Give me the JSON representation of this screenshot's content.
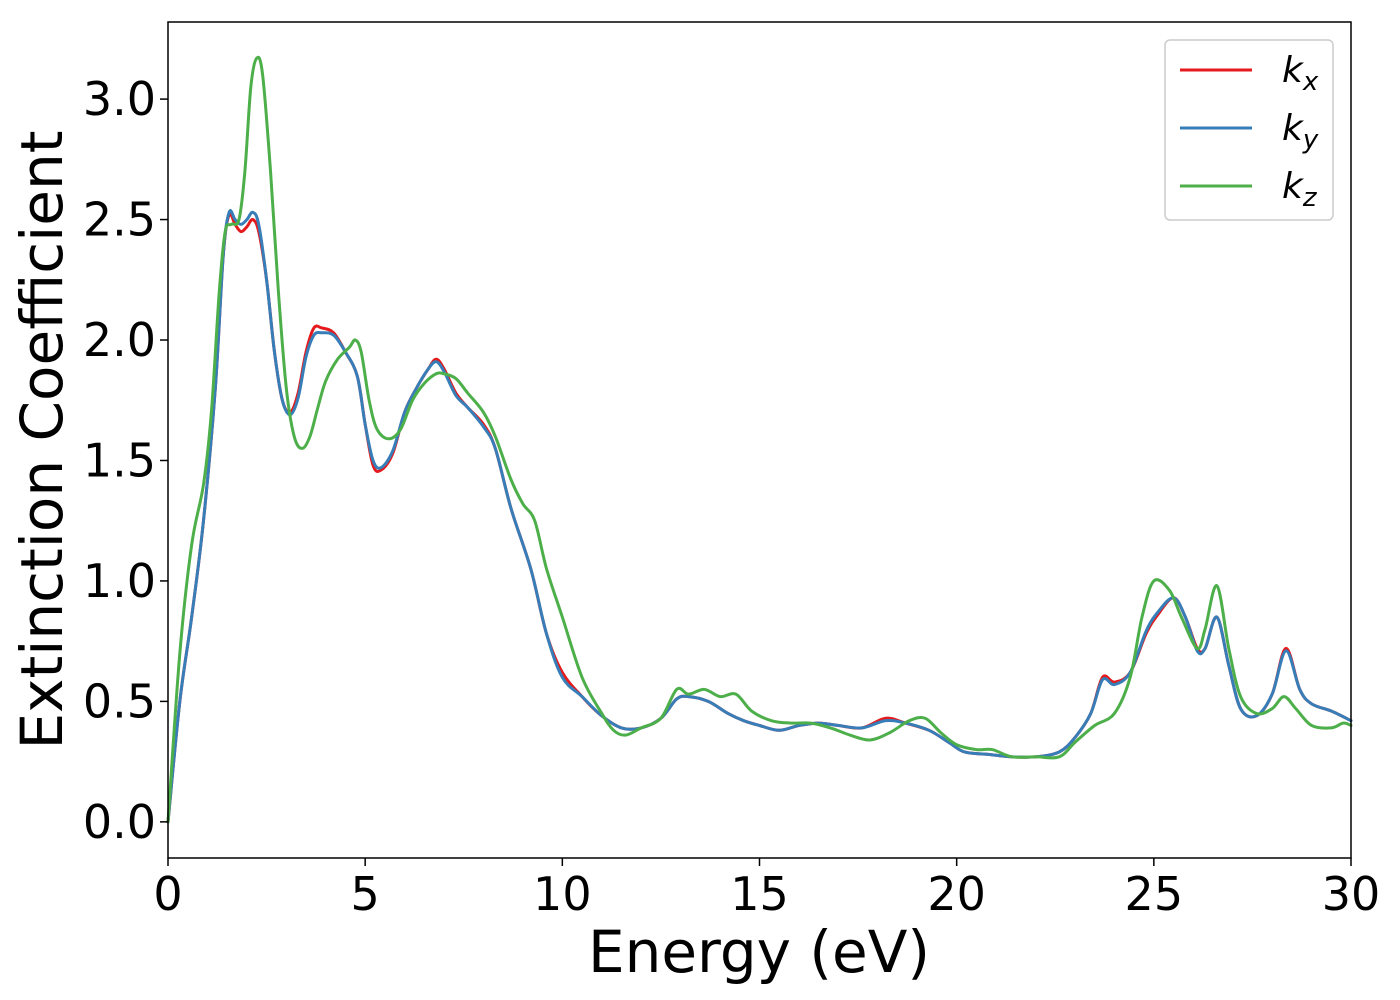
{
  "chart_data": {
    "type": "line",
    "xlabel": "Energy (eV)",
    "ylabel": "Extinction Coefficient",
    "xlim": [
      0,
      30
    ],
    "ylim": [
      -0.15,
      3.32
    ],
    "xticks": [
      0,
      5,
      10,
      15,
      20,
      25,
      30
    ],
    "xtick_labels": [
      "0",
      "5",
      "10",
      "15",
      "20",
      "25",
      "30"
    ],
    "yticks": [
      0.0,
      0.5,
      1.0,
      1.5,
      2.0,
      2.5,
      3.0
    ],
    "ytick_labels": [
      "0.0",
      "0.5",
      "1.0",
      "1.5",
      "2.0",
      "2.5",
      "3.0"
    ],
    "grid": false,
    "legend_position": "top-right",
    "series": [
      {
        "name": "k",
        "subscript": "x",
        "color": "#e41a1c",
        "points": [
          [
            0,
            0.0
          ],
          [
            0.3,
            0.5
          ],
          [
            0.6,
            0.85
          ],
          [
            0.9,
            1.25
          ],
          [
            1.2,
            1.8
          ],
          [
            1.4,
            2.35
          ],
          [
            1.55,
            2.52
          ],
          [
            1.7,
            2.48
          ],
          [
            1.85,
            2.45
          ],
          [
            2.0,
            2.47
          ],
          [
            2.15,
            2.5
          ],
          [
            2.3,
            2.45
          ],
          [
            2.5,
            2.25
          ],
          [
            2.7,
            1.95
          ],
          [
            2.9,
            1.75
          ],
          [
            3.1,
            1.7
          ],
          [
            3.3,
            1.78
          ],
          [
            3.5,
            1.95
          ],
          [
            3.7,
            2.05
          ],
          [
            3.9,
            2.05
          ],
          [
            4.2,
            2.03
          ],
          [
            4.5,
            1.95
          ],
          [
            4.8,
            1.85
          ],
          [
            5.0,
            1.65
          ],
          [
            5.2,
            1.48
          ],
          [
            5.4,
            1.46
          ],
          [
            5.7,
            1.53
          ],
          [
            6.0,
            1.7
          ],
          [
            6.3,
            1.8
          ],
          [
            6.6,
            1.88
          ],
          [
            6.8,
            1.92
          ],
          [
            7.0,
            1.88
          ],
          [
            7.3,
            1.78
          ],
          [
            7.6,
            1.72
          ],
          [
            8.0,
            1.65
          ],
          [
            8.3,
            1.55
          ],
          [
            8.7,
            1.3
          ],
          [
            9.2,
            1.05
          ],
          [
            9.6,
            0.78
          ],
          [
            10.0,
            0.62
          ],
          [
            10.5,
            0.52
          ],
          [
            11.0,
            0.44
          ],
          [
            11.5,
            0.39
          ],
          [
            12.0,
            0.39
          ],
          [
            12.5,
            0.43
          ],
          [
            12.9,
            0.51
          ],
          [
            13.2,
            0.52
          ],
          [
            13.7,
            0.5
          ],
          [
            14.2,
            0.45
          ],
          [
            14.6,
            0.42
          ],
          [
            15.0,
            0.4
          ],
          [
            15.5,
            0.38
          ],
          [
            16.0,
            0.4
          ],
          [
            16.5,
            0.41
          ],
          [
            17.0,
            0.4
          ],
          [
            17.6,
            0.39
          ],
          [
            18.2,
            0.43
          ],
          [
            18.7,
            0.41
          ],
          [
            19.3,
            0.38
          ],
          [
            19.8,
            0.33
          ],
          [
            20.2,
            0.29
          ],
          [
            20.8,
            0.28
          ],
          [
            21.4,
            0.27
          ],
          [
            22.0,
            0.27
          ],
          [
            22.6,
            0.29
          ],
          [
            23.0,
            0.35
          ],
          [
            23.4,
            0.45
          ],
          [
            23.7,
            0.6
          ],
          [
            24.0,
            0.58
          ],
          [
            24.4,
            0.62
          ],
          [
            24.8,
            0.78
          ],
          [
            25.1,
            0.86
          ],
          [
            25.5,
            0.93
          ],
          [
            25.8,
            0.85
          ],
          [
            26.1,
            0.72
          ],
          [
            26.3,
            0.72
          ],
          [
            26.6,
            0.85
          ],
          [
            26.9,
            0.65
          ],
          [
            27.2,
            0.47
          ],
          [
            27.6,
            0.44
          ],
          [
            28.0,
            0.53
          ],
          [
            28.35,
            0.72
          ],
          [
            28.7,
            0.55
          ],
          [
            29.0,
            0.49
          ],
          [
            29.5,
            0.46
          ],
          [
            30.0,
            0.42
          ]
        ]
      },
      {
        "name": "k",
        "subscript": "y",
        "color": "#377eb8",
        "points": [
          [
            0,
            0.0
          ],
          [
            0.3,
            0.5
          ],
          [
            0.6,
            0.85
          ],
          [
            0.9,
            1.25
          ],
          [
            1.2,
            1.8
          ],
          [
            1.4,
            2.35
          ],
          [
            1.55,
            2.53
          ],
          [
            1.7,
            2.5
          ],
          [
            1.85,
            2.48
          ],
          [
            2.0,
            2.5
          ],
          [
            2.15,
            2.53
          ],
          [
            2.3,
            2.48
          ],
          [
            2.5,
            2.25
          ],
          [
            2.7,
            1.95
          ],
          [
            2.9,
            1.75
          ],
          [
            3.1,
            1.69
          ],
          [
            3.3,
            1.76
          ],
          [
            3.5,
            1.93
          ],
          [
            3.7,
            2.02
          ],
          [
            3.9,
            2.03
          ],
          [
            4.2,
            2.02
          ],
          [
            4.5,
            1.95
          ],
          [
            4.8,
            1.85
          ],
          [
            5.0,
            1.65
          ],
          [
            5.2,
            1.5
          ],
          [
            5.4,
            1.47
          ],
          [
            5.7,
            1.54
          ],
          [
            6.0,
            1.7
          ],
          [
            6.3,
            1.8
          ],
          [
            6.6,
            1.88
          ],
          [
            6.8,
            1.91
          ],
          [
            7.0,
            1.87
          ],
          [
            7.3,
            1.77
          ],
          [
            7.6,
            1.72
          ],
          [
            8.0,
            1.64
          ],
          [
            8.3,
            1.55
          ],
          [
            8.7,
            1.3
          ],
          [
            9.2,
            1.05
          ],
          [
            9.6,
            0.78
          ],
          [
            10.0,
            0.6
          ],
          [
            10.5,
            0.52
          ],
          [
            11.0,
            0.44
          ],
          [
            11.5,
            0.39
          ],
          [
            12.0,
            0.39
          ],
          [
            12.5,
            0.43
          ],
          [
            12.9,
            0.51
          ],
          [
            13.2,
            0.52
          ],
          [
            13.7,
            0.5
          ],
          [
            14.2,
            0.45
          ],
          [
            14.6,
            0.42
          ],
          [
            15.0,
            0.4
          ],
          [
            15.5,
            0.38
          ],
          [
            16.0,
            0.4
          ],
          [
            16.5,
            0.41
          ],
          [
            17.0,
            0.4
          ],
          [
            17.6,
            0.39
          ],
          [
            18.2,
            0.42
          ],
          [
            18.7,
            0.41
          ],
          [
            19.3,
            0.38
          ],
          [
            19.8,
            0.33
          ],
          [
            20.2,
            0.29
          ],
          [
            20.8,
            0.28
          ],
          [
            21.4,
            0.27
          ],
          [
            22.0,
            0.27
          ],
          [
            22.6,
            0.29
          ],
          [
            23.0,
            0.35
          ],
          [
            23.4,
            0.45
          ],
          [
            23.7,
            0.59
          ],
          [
            24.0,
            0.57
          ],
          [
            24.4,
            0.62
          ],
          [
            24.8,
            0.79
          ],
          [
            25.1,
            0.87
          ],
          [
            25.5,
            0.93
          ],
          [
            25.8,
            0.85
          ],
          [
            26.1,
            0.71
          ],
          [
            26.3,
            0.72
          ],
          [
            26.6,
            0.85
          ],
          [
            26.9,
            0.65
          ],
          [
            27.2,
            0.47
          ],
          [
            27.6,
            0.44
          ],
          [
            28.0,
            0.53
          ],
          [
            28.35,
            0.71
          ],
          [
            28.7,
            0.55
          ],
          [
            29.0,
            0.49
          ],
          [
            29.5,
            0.46
          ],
          [
            30.0,
            0.42
          ]
        ]
      },
      {
        "name": "k",
        "subscript": "z",
        "color": "#4daf4a",
        "points": [
          [
            0,
            0.0
          ],
          [
            0.3,
            0.7
          ],
          [
            0.6,
            1.15
          ],
          [
            0.9,
            1.4
          ],
          [
            1.1,
            1.7
          ],
          [
            1.3,
            2.2
          ],
          [
            1.45,
            2.45
          ],
          [
            1.6,
            2.48
          ],
          [
            1.8,
            2.5
          ],
          [
            1.95,
            2.7
          ],
          [
            2.1,
            3.05
          ],
          [
            2.25,
            3.17
          ],
          [
            2.4,
            3.1
          ],
          [
            2.6,
            2.7
          ],
          [
            2.8,
            2.2
          ],
          [
            3.0,
            1.8
          ],
          [
            3.2,
            1.6
          ],
          [
            3.4,
            1.55
          ],
          [
            3.6,
            1.6
          ],
          [
            3.8,
            1.72
          ],
          [
            4.0,
            1.83
          ],
          [
            4.3,
            1.92
          ],
          [
            4.6,
            1.97
          ],
          [
            4.75,
            2.0
          ],
          [
            4.9,
            1.95
          ],
          [
            5.1,
            1.75
          ],
          [
            5.3,
            1.63
          ],
          [
            5.6,
            1.59
          ],
          [
            5.9,
            1.63
          ],
          [
            6.2,
            1.75
          ],
          [
            6.5,
            1.82
          ],
          [
            6.8,
            1.86
          ],
          [
            7.0,
            1.86
          ],
          [
            7.3,
            1.84
          ],
          [
            7.6,
            1.78
          ],
          [
            8.0,
            1.7
          ],
          [
            8.3,
            1.6
          ],
          [
            8.7,
            1.42
          ],
          [
            9.0,
            1.32
          ],
          [
            9.3,
            1.25
          ],
          [
            9.6,
            1.05
          ],
          [
            10.0,
            0.85
          ],
          [
            10.5,
            0.6
          ],
          [
            11.0,
            0.45
          ],
          [
            11.3,
            0.38
          ],
          [
            11.6,
            0.36
          ],
          [
            12.0,
            0.39
          ],
          [
            12.5,
            0.43
          ],
          [
            12.9,
            0.55
          ],
          [
            13.2,
            0.53
          ],
          [
            13.6,
            0.55
          ],
          [
            14.0,
            0.52
          ],
          [
            14.4,
            0.53
          ],
          [
            14.8,
            0.46
          ],
          [
            15.3,
            0.42
          ],
          [
            15.8,
            0.41
          ],
          [
            16.3,
            0.41
          ],
          [
            16.8,
            0.39
          ],
          [
            17.3,
            0.36
          ],
          [
            17.8,
            0.34
          ],
          [
            18.3,
            0.37
          ],
          [
            18.8,
            0.42
          ],
          [
            19.2,
            0.43
          ],
          [
            19.6,
            0.37
          ],
          [
            20.0,
            0.32
          ],
          [
            20.5,
            0.3
          ],
          [
            20.9,
            0.3
          ],
          [
            21.4,
            0.27
          ],
          [
            22.0,
            0.27
          ],
          [
            22.6,
            0.27
          ],
          [
            23.0,
            0.33
          ],
          [
            23.5,
            0.4
          ],
          [
            24.0,
            0.45
          ],
          [
            24.4,
            0.6
          ],
          [
            24.7,
            0.85
          ],
          [
            25.0,
            1.0
          ],
          [
            25.4,
            0.96
          ],
          [
            25.7,
            0.85
          ],
          [
            26.1,
            0.72
          ],
          [
            26.3,
            0.8
          ],
          [
            26.6,
            0.98
          ],
          [
            26.9,
            0.72
          ],
          [
            27.2,
            0.52
          ],
          [
            27.6,
            0.45
          ],
          [
            28.0,
            0.47
          ],
          [
            28.3,
            0.52
          ],
          [
            28.6,
            0.47
          ],
          [
            29.0,
            0.4
          ],
          [
            29.5,
            0.39
          ],
          [
            29.8,
            0.41
          ],
          [
            30.0,
            0.4
          ]
        ]
      }
    ]
  }
}
